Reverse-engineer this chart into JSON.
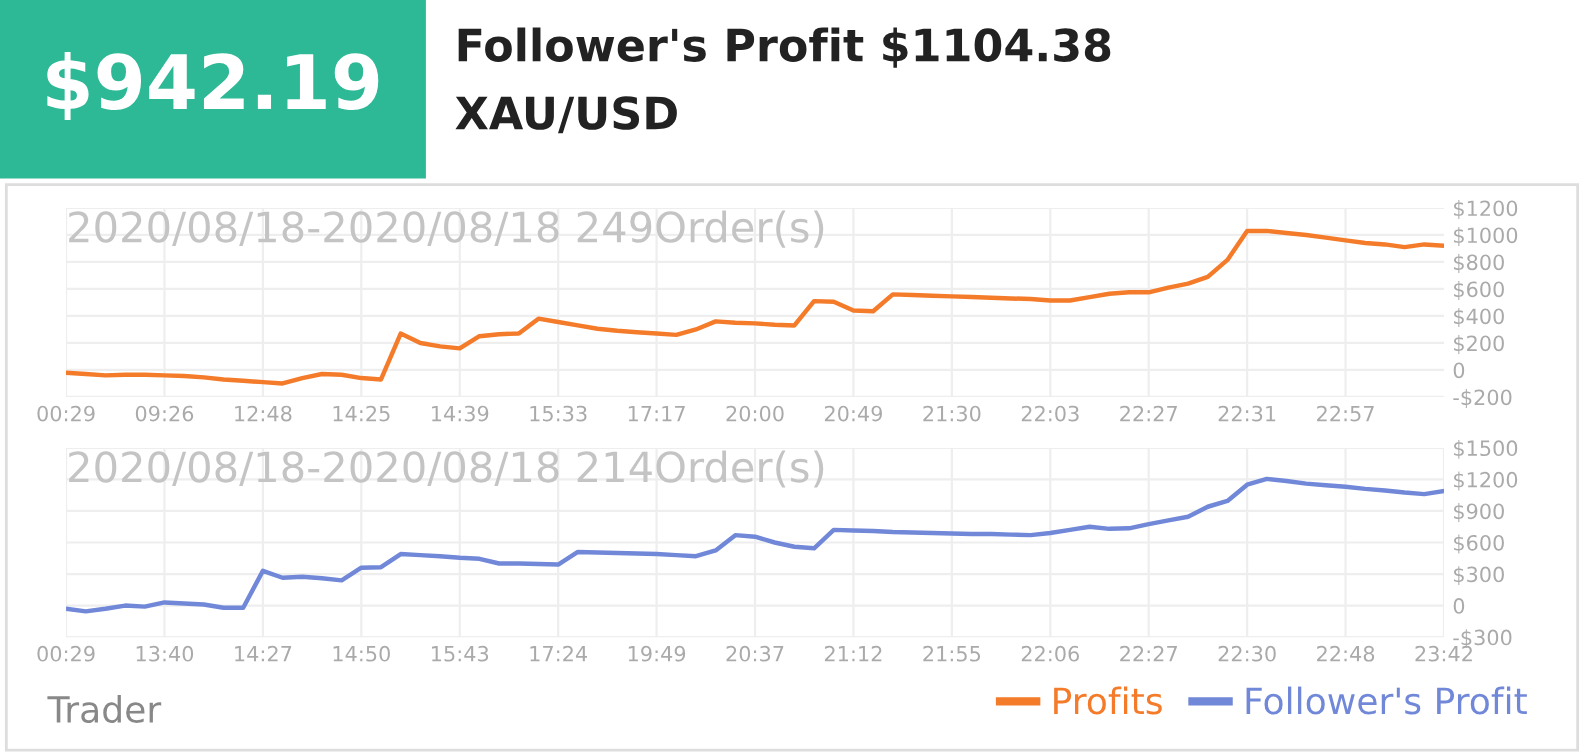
{
  "chart_data": [
    {
      "type": "other",
      "title": "Follower's Profit $1104.38",
      "subtitle": "XAU/USD",
      "annotations": [
        "$942.19",
        "Trader"
      ]
    },
    {
      "type": "line",
      "title": "2020/08/18-2020/08/18 249Order(s)",
      "grid": true,
      "legend": "bottom right",
      "marker": "none",
      "line_style": "solid",
      "categories": [
        "00:29",
        null,
        null,
        null,
        null,
        "09:26",
        null,
        null,
        null,
        null,
        "12:48",
        null,
        null,
        null,
        null,
        "14:25",
        null,
        null,
        null,
        null,
        "14:39",
        null,
        null,
        null,
        null,
        "15:33",
        null,
        null,
        null,
        null,
        "17:17",
        null,
        null,
        null,
        null,
        "20:00",
        null,
        null,
        null,
        null,
        "20:49",
        null,
        null,
        null,
        null,
        "21:30",
        null,
        null,
        null,
        null,
        "22:03",
        null,
        null,
        null,
        null,
        "22:27",
        null,
        null,
        null,
        null,
        "22:31",
        null,
        null,
        null,
        null,
        "22:57",
        null,
        null,
        null,
        null,
        null
      ],
      "ylim": [
        -200,
        1200
      ],
      "yticks": [
        {
          "value": -200,
          "label": "-$200"
        },
        0,
        {
          "value": 200,
          "label": "$200"
        },
        {
          "value": 400,
          "label": "$400"
        },
        {
          "value": 600,
          "label": "$600"
        },
        {
          "value": 800,
          "label": "$800"
        },
        {
          "value": 1000,
          "label": "$1000"
        },
        {
          "value": 1200,
          "label": "$1200"
        }
      ],
      "series": [
        {
          "name": "Profits",
          "color": "#f47b2a",
          "values": [
            -20,
            -30,
            -40,
            -35,
            -35,
            -40,
            -45,
            -55,
            -70,
            -80,
            -90,
            -100,
            -60,
            -30,
            -35,
            -60,
            -70,
            270,
            200,
            175,
            160,
            250,
            265,
            270,
            380,
            355,
            330,
            305,
            290,
            280,
            270,
            260,
            300,
            360,
            350,
            345,
            335,
            330,
            510,
            505,
            440,
            435,
            560,
            555,
            550,
            545,
            540,
            535,
            530,
            525,
            515,
            515,
            540,
            565,
            575,
            575,
            610,
            640,
            690,
            815,
            1030,
            1030,
            1015,
            1000,
            980,
            960,
            940,
            930,
            910,
            930,
            920
          ]
        }
      ]
    },
    {
      "type": "line",
      "title": "2020/08/18-2020/08/18 214Order(s)",
      "grid": true,
      "legend": "bottom right",
      "marker": "none",
      "line_style": "solid",
      "categories": [
        "00:29",
        null,
        null,
        null,
        null,
        "13:40",
        null,
        null,
        null,
        null,
        "14:27",
        null,
        null,
        null,
        null,
        "14:50",
        null,
        null,
        null,
        null,
        "15:43",
        null,
        null,
        null,
        null,
        "17:24",
        null,
        null,
        null,
        null,
        "19:49",
        null,
        null,
        null,
        null,
        "20:37",
        null,
        null,
        null,
        null,
        "21:12",
        null,
        null,
        null,
        null,
        "21:55",
        null,
        null,
        null,
        null,
        "22:06",
        null,
        null,
        null,
        null,
        "22:27",
        null,
        null,
        null,
        null,
        "22:30",
        null,
        null,
        null,
        null,
        "22:48",
        null,
        null,
        null,
        null,
        "23:42"
      ],
      "ylim": [
        -300,
        1500
      ],
      "yticks": [
        {
          "value": -300,
          "label": "-$300"
        },
        0,
        {
          "value": 300,
          "label": "$300"
        },
        {
          "value": 600,
          "label": "$600"
        },
        {
          "value": 900,
          "label": "$900"
        },
        {
          "value": 1200,
          "label": "$1200"
        },
        {
          "value": 1500,
          "label": "$1500"
        }
      ],
      "series": [
        {
          "name": "Follower's Profit",
          "color": "#7188d8",
          "values": [
            -30,
            -55,
            -30,
            0,
            -10,
            30,
            20,
            10,
            -20,
            -20,
            330,
            265,
            275,
            260,
            240,
            360,
            365,
            490,
            480,
            470,
            455,
            445,
            400,
            400,
            395,
            390,
            510,
            505,
            500,
            495,
            490,
            480,
            470,
            525,
            670,
            655,
            600,
            560,
            545,
            720,
            715,
            710,
            700,
            695,
            690,
            685,
            680,
            680,
            675,
            670,
            690,
            720,
            750,
            730,
            735,
            775,
            810,
            845,
            940,
            995,
            1150,
            1205,
            1185,
            1160,
            1145,
            1130,
            1110,
            1095,
            1075,
            1060,
            1090
          ]
        }
      ]
    }
  ]
}
